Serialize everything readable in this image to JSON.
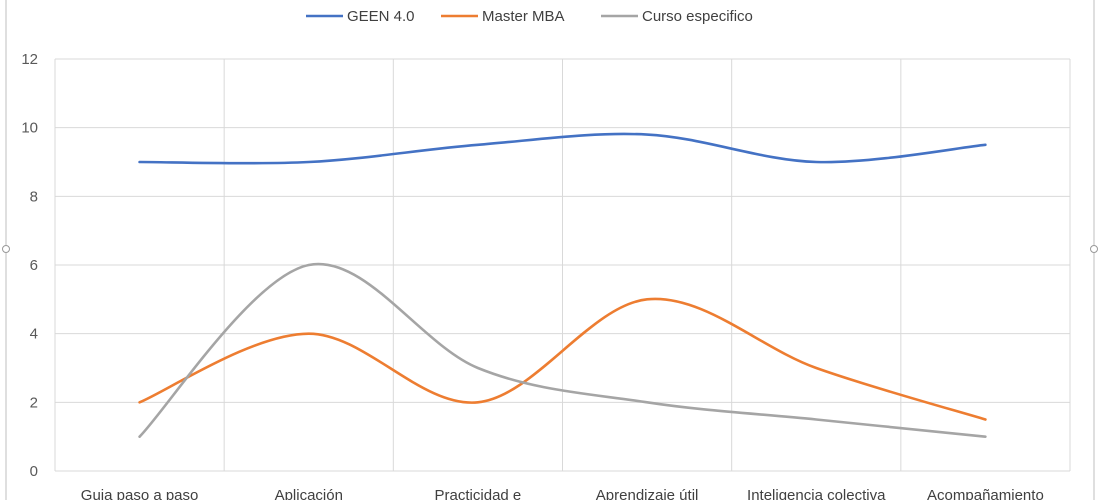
{
  "chart_data": {
    "type": "line",
    "title": "",
    "xlabel": "",
    "ylabel": "",
    "ylim": [
      0,
      12
    ],
    "yticks": [
      0,
      2,
      4,
      6,
      8,
      10,
      12
    ],
    "grid": true,
    "smooth": true,
    "legend_position": "top",
    "categories": [
      "Guia paso a paso",
      "Aplicación",
      "Practicidad e",
      "Aprendizaje útil",
      "Inteligencia colectiva",
      "Acompañamiento"
    ],
    "series": [
      {
        "name": "GEEN 4.0",
        "color": "#4472c4",
        "values": [
          9,
          9,
          9.5,
          9.8,
          9,
          9.5
        ]
      },
      {
        "name": "Master MBA",
        "color": "#ed7d31",
        "values": [
          2,
          4,
          2,
          5,
          3,
          1.5
        ]
      },
      {
        "name": "Curso especifico",
        "color": "#a5a5a5",
        "values": [
          1,
          6,
          3,
          2,
          1.5,
          1
        ]
      }
    ]
  }
}
